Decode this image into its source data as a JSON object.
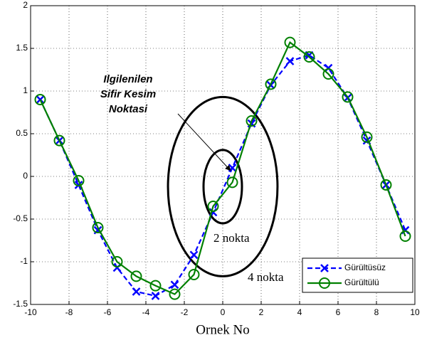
{
  "chart_data": {
    "type": "line",
    "xlabel": "Ornek No",
    "x": [
      -9.5,
      -8.5,
      -7.5,
      -6.5,
      -5.5,
      -4.5,
      -3.5,
      -2.5,
      -1.5,
      -0.5,
      0.5,
      1.5,
      2.5,
      3.5,
      4.5,
      5.5,
      6.5,
      7.5,
      8.5,
      9.5
    ],
    "series": [
      {
        "name": "Gürültüsüz",
        "color": "#0000ff",
        "values": [
          0.9,
          0.42,
          -0.1,
          -0.63,
          -1.07,
          -1.35,
          -1.4,
          -1.27,
          -0.92,
          -0.42,
          0.1,
          0.62,
          1.07,
          1.35,
          1.42,
          1.27,
          0.92,
          0.42,
          -0.1,
          -0.63
        ]
      },
      {
        "name": "Gürültülü",
        "color": "#008000",
        "values": [
          0.9,
          0.42,
          -0.05,
          -0.6,
          -1.0,
          -1.17,
          -1.28,
          -1.38,
          -1.15,
          -0.35,
          -0.07,
          0.65,
          1.08,
          1.57,
          1.4,
          1.2,
          0.93,
          0.46,
          -0.1,
          -0.7
        ]
      }
    ],
    "xlim": [
      -10,
      10
    ],
    "xticks": [
      -10,
      -8,
      -6,
      -4,
      -2,
      0,
      2,
      4,
      6,
      8,
      10
    ],
    "ylim": [
      -1.5,
      2
    ],
    "yticks": [
      -1.5,
      -1,
      -0.5,
      0,
      0.5,
      1,
      1.5,
      2
    ],
    "grid": true,
    "legend": "lower right",
    "annotations": [
      {
        "lines": [
          "Ilgilenilen",
          "Sifir Kesim",
          "Noktasi"
        ]
      },
      {
        "text": "2 nokta"
      },
      {
        "text": "4 nokta"
      }
    ]
  }
}
